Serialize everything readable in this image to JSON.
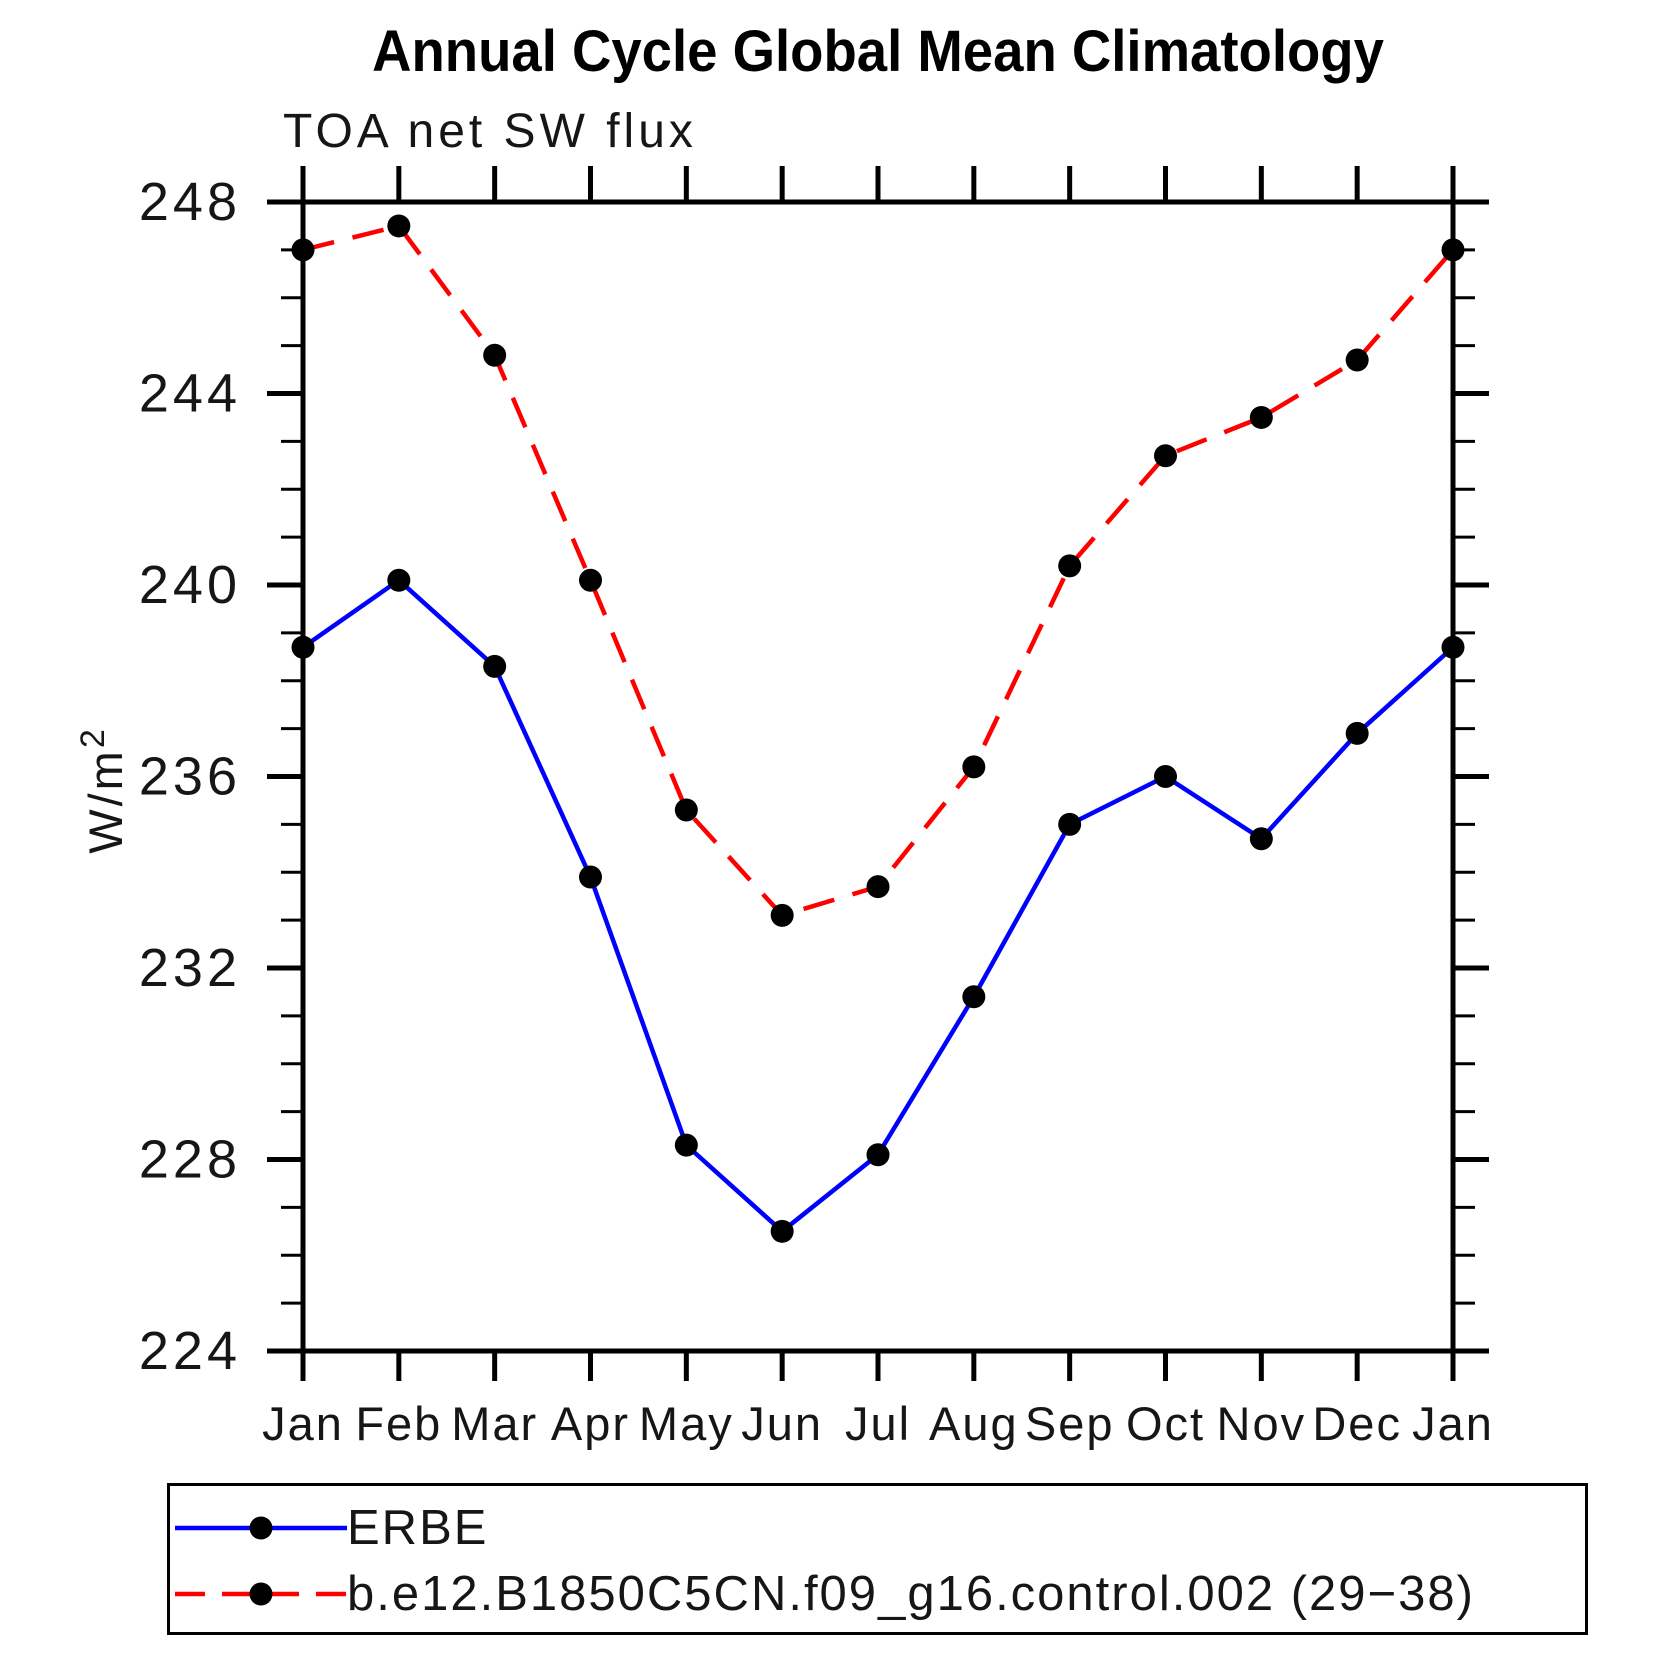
{
  "page": {
    "background": "#ffffff"
  },
  "header": {
    "title": "Annual Cycle Global Mean Climatology",
    "subtitle": "TOA net SW flux"
  },
  "axes": {
    "ylabel_base": "W/m",
    "ylabel_exponent": "2",
    "ytick_labels": [
      "248",
      "244",
      "240",
      "236",
      "232",
      "228",
      "224"
    ]
  },
  "legend": {
    "entries": [
      {
        "label": "ERBE",
        "line_color": "#0000ff",
        "line_style": "solid",
        "marker": "filled-circle",
        "marker_color": "#000000"
      },
      {
        "label": "b.e12.B1850C5CN.f09_g16.control.002 (29−38)",
        "line_color": "#ff0000",
        "line_style": "dashed",
        "marker": "filled-circle",
        "marker_color": "#000000"
      }
    ]
  },
  "chart_data": {
    "type": "line",
    "title": "Annual Cycle Global Mean Climatology",
    "subtitle": "TOA net SW flux",
    "xlabel": "",
    "ylabel": "W/m^2",
    "categories": [
      "Jan",
      "Feb",
      "Mar",
      "Apr",
      "May",
      "Jun",
      "Jul",
      "Aug",
      "Sep",
      "Oct",
      "Nov",
      "Dec",
      "Jan"
    ],
    "series": [
      {
        "name": "ERBE",
        "color": "#0000ff",
        "style": "solid",
        "marker": "circle",
        "marker_color": "#000000",
        "values": [
          238.7,
          240.1,
          238.3,
          233.9,
          228.3,
          226.5,
          228.1,
          231.4,
          235.0,
          236.0,
          234.7,
          236.9,
          238.7
        ]
      },
      {
        "name": "b.e12.B1850C5CN.f09_g16.control.002 (29−38)",
        "color": "#ff0000",
        "style": "dashed",
        "marker": "circle",
        "marker_color": "#000000",
        "values": [
          247.0,
          247.5,
          244.8,
          240.1,
          235.3,
          233.1,
          233.7,
          236.2,
          240.4,
          242.7,
          243.5,
          244.7,
          247.0
        ]
      }
    ],
    "ylim": [
      224,
      248
    ],
    "ytick_major_interval": 4,
    "ytick_minor_interval": 1,
    "ytick_major_values": [
      224,
      228,
      232,
      236,
      240,
      244,
      248
    ],
    "grid": false,
    "legend_position": "bottom"
  }
}
